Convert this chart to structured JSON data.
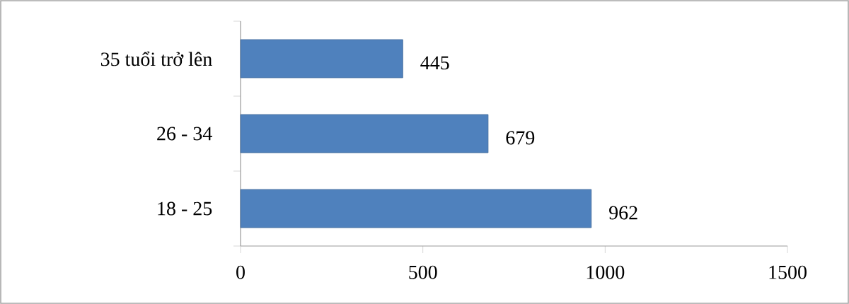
{
  "chart_data": {
    "type": "bar",
    "orientation": "horizontal",
    "categories": [
      "35 tuổi trở lên",
      "26 - 34",
      "18 - 25"
    ],
    "values": [
      445,
      679,
      962
    ],
    "color": "#4f81bd",
    "xlim": [
      0,
      1500
    ],
    "xticks": [
      0,
      500,
      1000,
      1500
    ],
    "data_labels": true
  }
}
